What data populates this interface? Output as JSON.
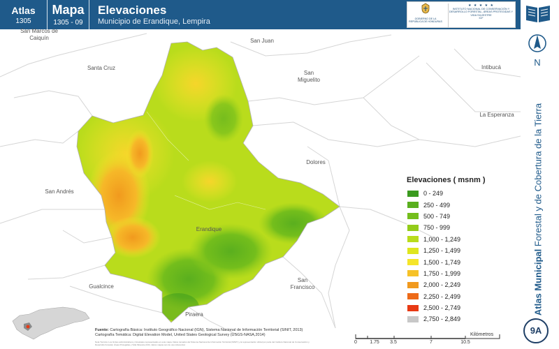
{
  "header": {
    "atlas_label": "Atlas",
    "atlas_number": "1305",
    "mapa_label": "Mapa",
    "mapa_number": "1305 - 09",
    "title": "Elevaciones",
    "subtitle": "Municipio de Erandique, Lempira",
    "logo_gob_text": "GOBIERNO DE LA REPÚBLICA DE HONDURAS",
    "logo_icf_stars": "★ ★ ★ ★ ★",
    "logo_icf_text": "INSTITUTO NACIONAL DE CONSERVACIÓN Y DESARROLLO FORESTAL, ÁREAS PROTEGIDAS Y VIDA SILVESTRE",
    "logo_icf_abbr": "ICF"
  },
  "places": {
    "san_marcos": "San Marcos de Caiquín",
    "santa_cruz": "Santa Cruz",
    "san_juan": "San Juan",
    "san_miguelito": "San Miguelito",
    "intibuca": "Intibucá",
    "la_esperanza": "La Esperanza",
    "dolores": "Dolores",
    "san_andres": "San Andrés",
    "erandique": "Erandique",
    "gualcince": "Gualcince",
    "san_francisco": "San Francisco",
    "piraera": "Piraera"
  },
  "legend": {
    "title": "Elevaciones ( msnm )",
    "items": [
      {
        "label": "0 - 249",
        "color": "#3a9a1e"
      },
      {
        "label": "250 - 499",
        "color": "#5aaf1e"
      },
      {
        "label": "500 - 749",
        "color": "#74be1c"
      },
      {
        "label": "750 - 999",
        "color": "#93cc1a"
      },
      {
        "label": "1,000 - 1,249",
        "color": "#b9dc1c"
      },
      {
        "label": "1,250 - 1,499",
        "color": "#dfe61e"
      },
      {
        "label": "1,500 - 1,749",
        "color": "#f5e52a"
      },
      {
        "label": "1,750 - 1,999",
        "color": "#f6c228"
      },
      {
        "label": "2,000 - 2,249",
        "color": "#f19a1e"
      },
      {
        "label": "2,250 - 2,499",
        "color": "#ed6a18"
      },
      {
        "label": "2,500 - 2,749",
        "color": "#e83a14"
      },
      {
        "label": "2,750 - 2,849",
        "color": "#c8c8c8"
      }
    ]
  },
  "side": {
    "north_label": "N",
    "vertical_bold": "Atlas Municipal",
    "vertical_rest": " Forestal y de Cobertura de la Tierra",
    "badge": "9A"
  },
  "footer": {
    "source_label": "Fuente:",
    "source_line1": "Cartografía Básica: Instituto Geográfico Nacional (IGN), Sistema Nacional de Información Territorial (SINIT, 2013)",
    "source_line2": "Cartografía Temática: Digital Elevation Model, United States Geological Survey (USGS-NASA,2014)",
    "notes": "Nota Técnica: Los límites administrativos y forestales representados en este mapa. Datos tomados del Sistema Nacional de Información Territorial (SINIT) y la representación oficial por parte del Instituto Nacional de Conservación y Desarrollo Forestal, Áreas Protegidas y Vida Silvestre (ICF). Estos mapas son de uso referencial."
  },
  "scale": {
    "ticks": [
      "0",
      "1.75",
      "3.5",
      "7",
      "10.5"
    ],
    "unit": "Kilómetros"
  }
}
